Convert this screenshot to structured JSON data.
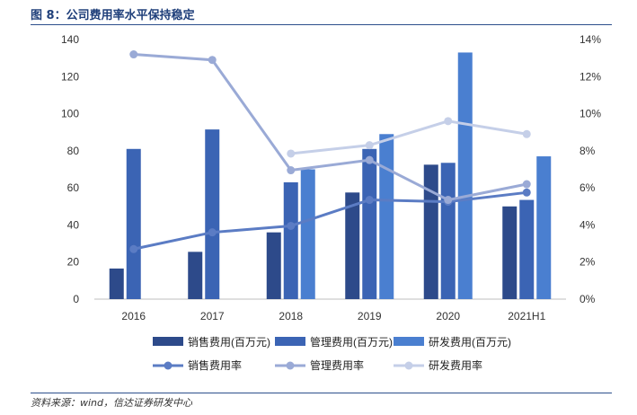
{
  "figure": {
    "title": "图 8：公司费用率水平保持稳定",
    "source": "资料来源：wind，信达证券研发中心"
  },
  "colors": {
    "sales_bar": "#2d4a8a",
    "mgmt_bar": "#3b64b4",
    "rd_bar": "#4a7fd0",
    "sales_line": "#5b7cc4",
    "mgmt_line": "#9aaad6",
    "rd_line": "#c5cfe8",
    "title": "#1f3f7a"
  },
  "chart_data": {
    "type": "bar",
    "categories": [
      "2016",
      "2017",
      "2018",
      "2019",
      "2020",
      "2021H1"
    ],
    "ylim": [
      0,
      140
    ],
    "yticks": [
      0,
      20,
      40,
      60,
      80,
      100,
      120,
      140
    ],
    "y2lim": [
      0,
      14
    ],
    "y2ticks": [
      "0%",
      "2%",
      "4%",
      "6%",
      "8%",
      "10%",
      "12%",
      "14%"
    ],
    "grid": false,
    "legend_position": "bottom",
    "bar_series": [
      {
        "name": "销售费用(百万元)",
        "values": [
          16.5,
          25.5,
          36,
          57.5,
          72.5,
          50
        ]
      },
      {
        "name": "管理费用(百万元)",
        "values": [
          81,
          91.5,
          63,
          81,
          73.5,
          53.5
        ]
      },
      {
        "name": "研发费用(百万元)",
        "values": [
          null,
          null,
          70,
          89,
          133,
          77
        ]
      }
    ],
    "line_series": [
      {
        "name": "销售费用率",
        "values": [
          2.7,
          3.6,
          3.95,
          5.35,
          5.25,
          5.75
        ]
      },
      {
        "name": "管理费用率",
        "values": [
          13.2,
          12.9,
          6.95,
          7.5,
          5.35,
          6.2
        ]
      },
      {
        "name": "研发费用率",
        "values": [
          null,
          null,
          7.85,
          8.3,
          9.6,
          8.9
        ]
      }
    ]
  }
}
